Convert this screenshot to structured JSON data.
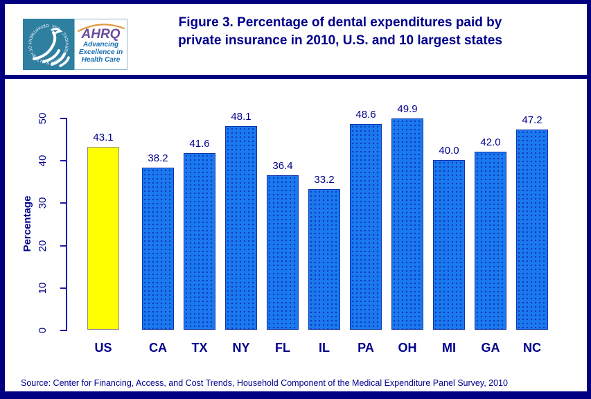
{
  "header": {
    "title_line1": "Figure 3. Percentage of dental expenditures paid by",
    "title_line2": "private insurance in 2010, U.S. and 10 largest states"
  },
  "logo": {
    "org_abbrev": "AHRQ",
    "tagline_line1": "Advancing",
    "tagline_line2": "Excellence in",
    "tagline_line3": "Health Care",
    "seal_text": "DEPARTMENT OF HEALTH & HUMAN SERVICES • USA"
  },
  "chart_data": {
    "type": "bar",
    "title": "Percentage of dental expenditures paid by private insurance in 2010, U.S. and 10 largest states",
    "categories": [
      "US",
      "CA",
      "TX",
      "NY",
      "FL",
      "IL",
      "PA",
      "OH",
      "MI",
      "GA",
      "NC"
    ],
    "values": [
      43.1,
      38.2,
      41.6,
      48.1,
      36.4,
      33.2,
      48.6,
      49.9,
      40.0,
      42.0,
      47.2
    ],
    "xlabel": "",
    "ylabel": "Percentage",
    "ylim": [
      0,
      50
    ],
    "yticks": [
      0,
      10,
      20,
      30,
      40,
      50
    ],
    "grid": false,
    "legend": "none",
    "value_labels_shown": true,
    "highlight_category": "US",
    "bar_color": "#1b79f0",
    "highlight_color": "#ffff00"
  },
  "footer": {
    "source": "Source: Center for Financing, Access, and Cost Trends, Household Component of the Medical Expenditure Panel Survey, 2010"
  },
  "colors": {
    "frame_navy": "#000080",
    "text_navy": "#00008b",
    "seal_background": "#2e7fa0",
    "ahrq_purple": "#6a4d9e",
    "arc_orange": "#e09a3c",
    "tagline_blue": "#1a6fb4"
  }
}
